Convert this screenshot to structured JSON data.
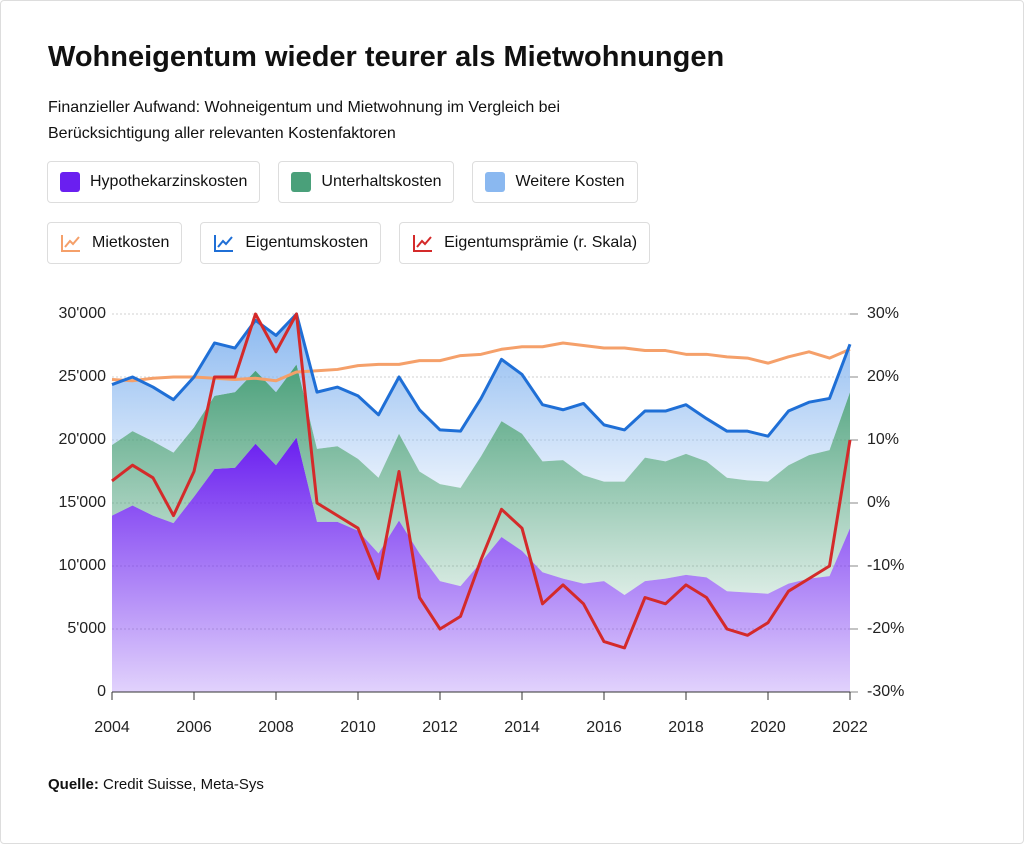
{
  "chart_data": {
    "type": "stacked-area-line",
    "title": "Wohneigentum wieder teurer als Mietwohnungen",
    "subtitle": "Finanzieller Aufwand: Wohneigentum und Mietwohnung im Vergleich bei Berücksichtigung aller relevanten Kostenfaktoren",
    "source": {
      "label": "Quelle:",
      "text": "Credit Suisse, Meta-Sys"
    },
    "x": [
      2004.0,
      2004.5,
      2005.0,
      2005.5,
      2006.0,
      2006.5,
      2007.0,
      2007.5,
      2008.0,
      2008.5,
      2009.0,
      2009.5,
      2010.0,
      2010.5,
      2011.0,
      2011.5,
      2012.0,
      2012.5,
      2013.0,
      2013.5,
      2014.0,
      2014.5,
      2015.0,
      2015.5,
      2016.0,
      2016.5,
      2017.0,
      2017.5,
      2018.0,
      2018.5,
      2019.0,
      2019.5,
      2020.0,
      2020.5,
      2021.0,
      2021.5,
      2022.0
    ],
    "series": [
      {
        "name": "Hypothekarzinskosten",
        "kind": "area",
        "color": "#6a1ff0",
        "values": [
          14000,
          14800,
          14000,
          13400,
          15500,
          17700,
          17800,
          19700,
          18000,
          20200,
          13500,
          13500,
          12800,
          11000,
          13600,
          11000,
          8800,
          8400,
          10300,
          12300,
          11200,
          9500,
          9000,
          8600,
          8800,
          7700,
          8800,
          9000,
          9300,
          9100,
          8000,
          7900,
          7800,
          8600,
          9000,
          9200,
          13000
        ]
      },
      {
        "name": "Unterhaltskosten",
        "kind": "area",
        "color": "#4aa07a",
        "values": [
          5600,
          5900,
          5900,
          5600,
          5500,
          5800,
          6000,
          5800,
          5800,
          5800,
          5800,
          6000,
          5700,
          6000,
          6900,
          6500,
          7700,
          7800,
          8400,
          9200,
          9300,
          8800,
          9400,
          8600,
          7900,
          9000,
          9800,
          9300,
          9600,
          9200,
          9000,
          8900,
          8900,
          9400,
          9800,
          10000,
          10800
        ]
      },
      {
        "name": "Weitere Kosten",
        "kind": "area",
        "color": "#8ab8f0",
        "values": [
          4800,
          4300,
          4300,
          4200,
          4000,
          4200,
          3500,
          4000,
          4500,
          4000,
          4500,
          4700,
          5000,
          5000,
          4500,
          4900,
          4300,
          4500,
          4600,
          4900,
          4700,
          4500,
          4000,
          5700,
          4500,
          4100,
          3700,
          4000,
          3900,
          3400,
          3700,
          3900,
          3600,
          4300,
          4200,
          4100,
          3800
        ]
      },
      {
        "name": "Mietkosten",
        "kind": "line",
        "color": "#f5a06a",
        "values": [
          24800,
          24700,
          24900,
          25000,
          25000,
          24900,
          24800,
          24900,
          24700,
          25400,
          25500,
          25600,
          25900,
          26000,
          26000,
          26300,
          26300,
          26700,
          26800,
          27200,
          27400,
          27400,
          27700,
          27500,
          27300,
          27300,
          27100,
          27100,
          26800,
          26800,
          26600,
          26500,
          26100,
          26600,
          27000,
          26500,
          27200
        ]
      },
      {
        "name": "Eigentumskosten",
        "kind": "line",
        "color": "#1f6fd6",
        "values": [
          24400,
          25000,
          24200,
          23200,
          25000,
          27700,
          27300,
          29500,
          28300,
          30000,
          23800,
          24200,
          23500,
          22000,
          25000,
          22400,
          20800,
          20700,
          23300,
          26400,
          25200,
          22800,
          22400,
          22900,
          21200,
          20800,
          22300,
          22300,
          22800,
          21700,
          20700,
          20700,
          20300,
          22300,
          23000,
          23300,
          27600
        ]
      },
      {
        "name": "Eigentumsprämie (r. Skala)",
        "kind": "line",
        "axis": "y2",
        "color": "#d42a2a",
        "values": [
          3.5,
          6,
          4,
          -2,
          5,
          20,
          20,
          30,
          24,
          30,
          0,
          -2,
          -4,
          -12,
          5,
          -15,
          -20,
          -18,
          -9,
          -1,
          -4,
          -16,
          -13,
          -16,
          -22,
          -23,
          -15,
          -16,
          -13,
          -15,
          -20,
          -21,
          -19,
          -14,
          -12,
          -10,
          10
        ]
      }
    ],
    "xlim": [
      2004,
      2022
    ],
    "xticks": [
      2004,
      2006,
      2008,
      2010,
      2012,
      2014,
      2016,
      2018,
      2020,
      2022
    ],
    "ylim": [
      0,
      30000
    ],
    "yticks": [
      0,
      {
        "value": 5000,
        "label": "5'000"
      },
      {
        "value": 10000,
        "label": "10'000"
      },
      {
        "value": 15000,
        "label": "15'000"
      },
      {
        "value": 20000,
        "label": "20'000"
      },
      {
        "value": 25000,
        "label": "25'000"
      },
      {
        "value": 30000,
        "label": "30'000"
      }
    ],
    "y2lim": [
      -30,
      30
    ],
    "y2ticks": [
      {
        "value": -30,
        "label": "-30%"
      },
      {
        "value": -20,
        "label": "-20%"
      },
      {
        "value": -10,
        "label": "-10%"
      },
      {
        "value": 0,
        "label": "0%"
      },
      {
        "value": 10,
        "label": "10%"
      },
      {
        "value": 20,
        "label": "20%"
      },
      {
        "value": 30,
        "label": "30%"
      }
    ],
    "grid": true
  }
}
